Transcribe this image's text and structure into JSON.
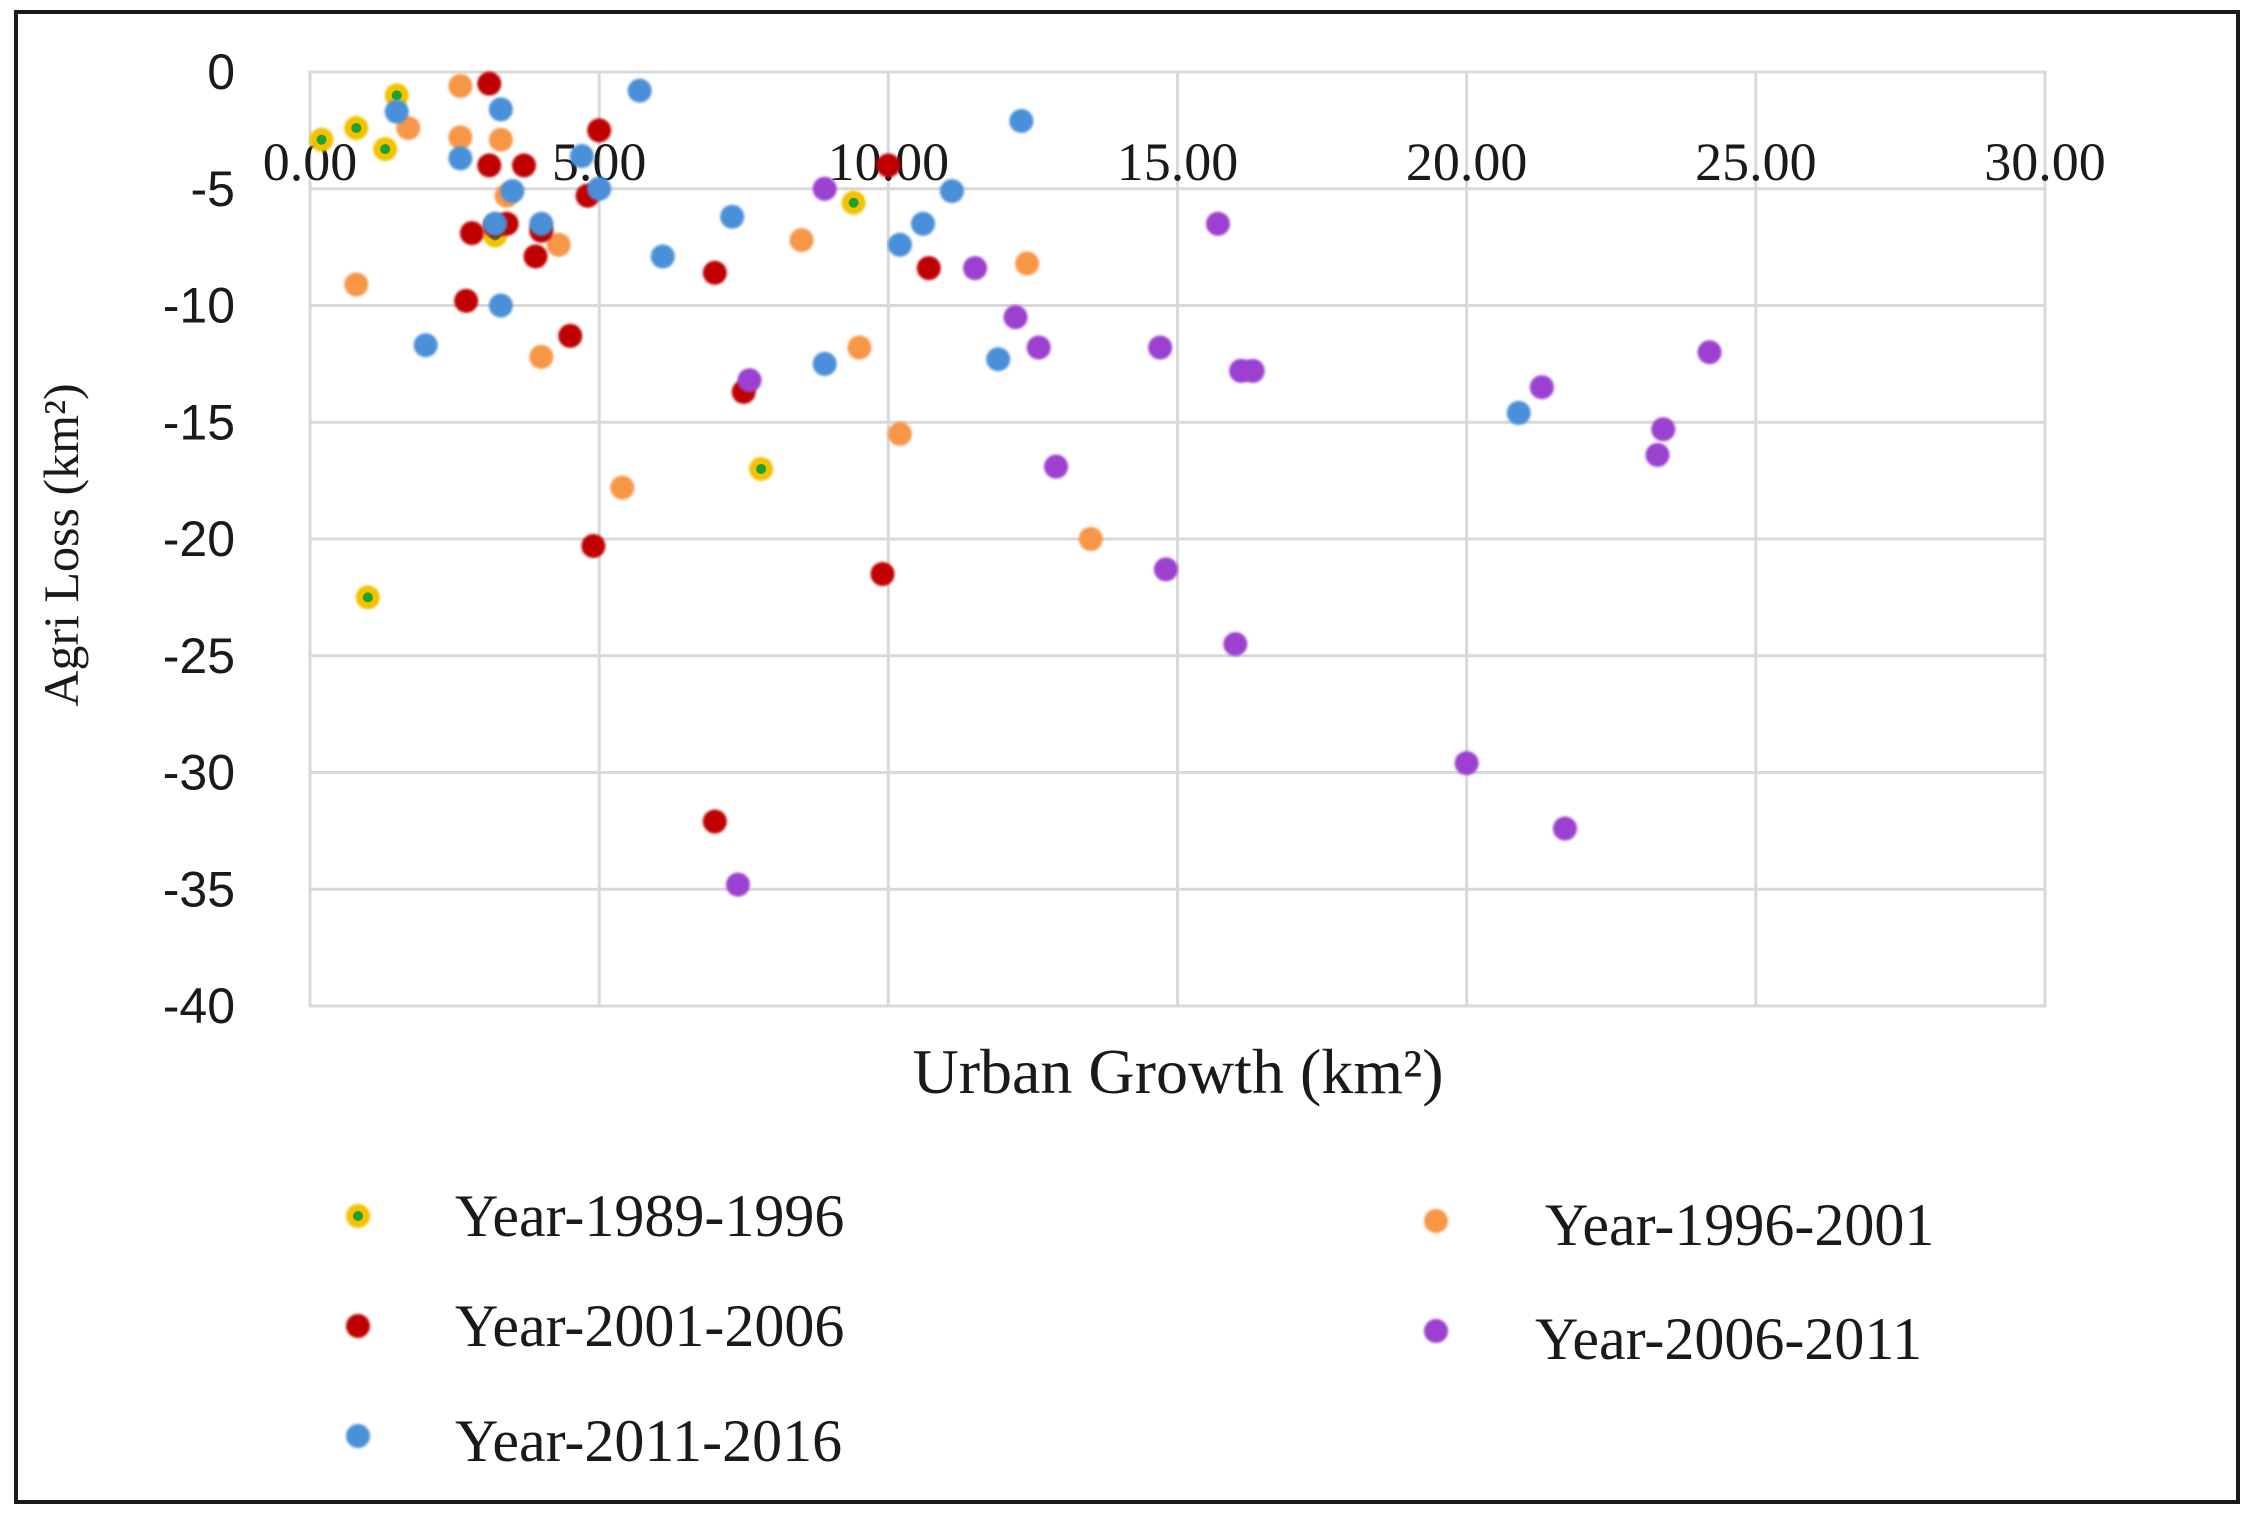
{
  "chart_data": {
    "type": "scatter",
    "title": "",
    "xlabel": "Urban Growth (km²)",
    "ylabel": "Agri Loss (km²)",
    "xlim": [
      0,
      30
    ],
    "ylim": [
      -40,
      0
    ],
    "x_ticks": [
      "0.00",
      "5.00",
      "10.00",
      "15.00",
      "20.00",
      "25.00",
      "30.00"
    ],
    "y_ticks": [
      "0",
      "-5",
      "-10",
      "-15",
      "-20",
      "-25",
      "-30",
      "-35",
      "-40"
    ],
    "grid": true,
    "legend_position": "bottom",
    "series": [
      {
        "name": "Year-1989-1996",
        "color": "#f2c200",
        "inner_color": "#20a030",
        "points": [
          [
            0.2,
            -2.9
          ],
          [
            0.8,
            -2.4
          ],
          [
            1.0,
            -22.5
          ],
          [
            1.3,
            -3.3
          ],
          [
            1.5,
            -1.0
          ],
          [
            3.2,
            -7.0
          ],
          [
            7.8,
            -17.0
          ],
          [
            9.4,
            -5.6
          ]
        ]
      },
      {
        "name": "Year-1996-2001",
        "color": "#f79646",
        "points": [
          [
            0.8,
            -9.1
          ],
          [
            1.7,
            -2.4
          ],
          [
            2.6,
            -0.6
          ],
          [
            2.6,
            -2.8
          ],
          [
            3.3,
            -2.9
          ],
          [
            3.4,
            -5.3
          ],
          [
            4.0,
            -12.2
          ],
          [
            4.3,
            -7.4
          ],
          [
            5.4,
            -17.8
          ],
          [
            8.5,
            -7.2
          ],
          [
            9.5,
            -11.8
          ],
          [
            10.2,
            -15.5
          ],
          [
            12.4,
            -8.2
          ],
          [
            13.5,
            -20.0
          ]
        ]
      },
      {
        "name": "Year-2001-2006",
        "color": "#c00000",
        "points": [
          [
            2.7,
            -9.8
          ],
          [
            2.8,
            -6.9
          ],
          [
            3.1,
            -0.5
          ],
          [
            3.1,
            -4.0
          ],
          [
            3.2,
            -6.6
          ],
          [
            3.4,
            -6.5
          ],
          [
            3.7,
            -4.0
          ],
          [
            3.9,
            -7.9
          ],
          [
            4.0,
            -6.8
          ],
          [
            4.5,
            -11.3
          ],
          [
            4.8,
            -5.3
          ],
          [
            4.9,
            -20.3
          ],
          [
            5.0,
            -2.5
          ],
          [
            7.0,
            -8.6
          ],
          [
            7.0,
            -32.1
          ],
          [
            7.5,
            -13.7
          ],
          [
            9.9,
            -21.5
          ],
          [
            10.0,
            -4.0
          ],
          [
            10.7,
            -8.4
          ]
        ]
      },
      {
        "name": "Year-2006-2011",
        "color": "#9b40d0",
        "points": [
          [
            7.4,
            -34.8
          ],
          [
            7.6,
            -13.2
          ],
          [
            8.9,
            -5.0
          ],
          [
            11.5,
            -8.4
          ],
          [
            12.2,
            -10.5
          ],
          [
            12.6,
            -11.8
          ],
          [
            12.9,
            -16.9
          ],
          [
            14.7,
            -11.8
          ],
          [
            14.8,
            -21.3
          ],
          [
            15.7,
            -6.5
          ],
          [
            16.0,
            -24.5
          ],
          [
            16.1,
            -12.8
          ],
          [
            16.3,
            -12.8
          ],
          [
            20.0,
            -29.6
          ],
          [
            21.3,
            -13.5
          ],
          [
            21.7,
            -32.4
          ],
          [
            23.3,
            -16.4
          ],
          [
            23.4,
            -15.3
          ],
          [
            24.2,
            -12.0
          ]
        ]
      },
      {
        "name": "Year-2011-2016",
        "color": "#4a90d9",
        "points": [
          [
            1.5,
            -1.7
          ],
          [
            2.0,
            -11.7
          ],
          [
            2.6,
            -3.7
          ],
          [
            3.2,
            -6.5
          ],
          [
            3.3,
            -10.0
          ],
          [
            3.3,
            -1.6
          ],
          [
            3.5,
            -5.1
          ],
          [
            4.0,
            -6.5
          ],
          [
            4.7,
            -3.6
          ],
          [
            5.0,
            -5.0
          ],
          [
            5.7,
            -0.8
          ],
          [
            6.1,
            -7.9
          ],
          [
            7.3,
            -6.2
          ],
          [
            8.9,
            -12.5
          ],
          [
            10.2,
            -7.4
          ],
          [
            10.6,
            -6.5
          ],
          [
            11.1,
            -5.1
          ],
          [
            11.9,
            -12.3
          ],
          [
            12.3,
            -2.1
          ],
          [
            20.9,
            -14.6
          ]
        ]
      }
    ]
  }
}
